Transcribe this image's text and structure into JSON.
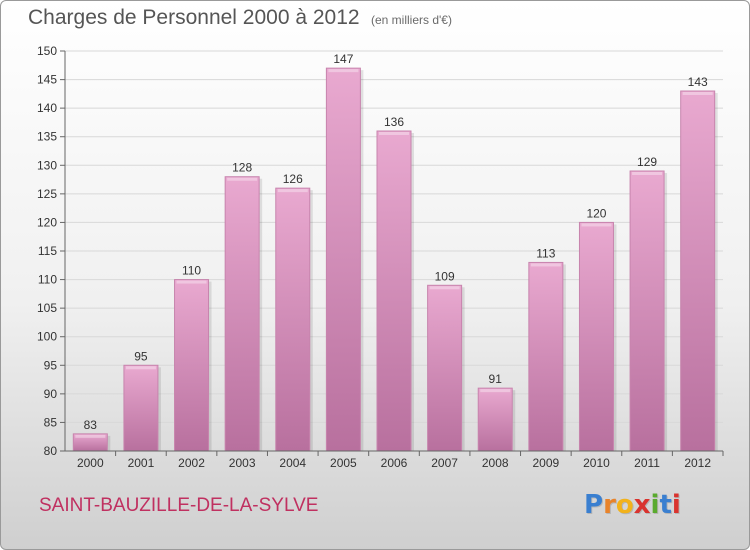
{
  "header": {
    "title": "Charges de Personnel 2000 à 2012",
    "unit": "(en milliers d'€)"
  },
  "footer": {
    "commune": "SAINT-BAUZILLE-DE-LA-SYLVE",
    "logo_letters": [
      "P",
      "r",
      "o",
      "x",
      "i",
      "t",
      "i"
    ],
    "logo_colors": [
      "#3a7fd0",
      "#e8832a",
      "#f2b21b",
      "#d9332e",
      "#5aaa2e",
      "#3a7fd0",
      "#d9332e"
    ]
  },
  "colors": {
    "bar": "#e2a0c8",
    "bar_dark": "#c27aa6",
    "axis": "#666666",
    "grid": "#d8d8d8"
  },
  "chart_data": {
    "type": "bar",
    "title": "Charges de Personnel 2000 à 2012",
    "subtitle": "(en milliers d'€)",
    "xlabel": "",
    "ylabel": "",
    "categories": [
      "2000",
      "2001",
      "2002",
      "2003",
      "2004",
      "2005",
      "2006",
      "2007",
      "2008",
      "2009",
      "2010",
      "2011",
      "2012"
    ],
    "values": [
      83,
      95,
      110,
      128,
      126,
      147,
      136,
      109,
      91,
      113,
      120,
      129,
      143
    ],
    "ylim": [
      80,
      150
    ],
    "yticks": [
      80,
      85,
      90,
      95,
      100,
      105,
      110,
      115,
      120,
      125,
      130,
      135,
      140,
      145,
      150
    ],
    "grid": true,
    "data_labels": true
  }
}
